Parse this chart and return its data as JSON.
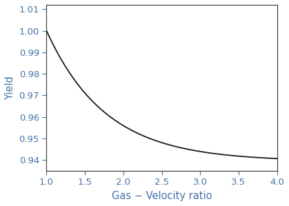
{
  "xlabel": "Gas − Velocity ratio",
  "ylabel": "Yield",
  "xlim": [
    1.0,
    4.0
  ],
  "ylim": [
    0.935,
    1.012
  ],
  "xticks": [
    1.0,
    1.5,
    2.0,
    2.5,
    3.0,
    3.5,
    4.0
  ],
  "yticks": [
    0.94,
    0.95,
    0.96,
    0.97,
    0.98,
    0.99,
    1.0,
    1.01
  ],
  "line_color": "#1a1a1a",
  "label_color": "#4472a8",
  "tick_color": "#4472a8",
  "spine_color": "#333333",
  "background_color": "#ffffff",
  "curve_a": 0.9395,
  "curve_b": 0.0605,
  "curve_k": 1.3,
  "curve_x0": 1.0,
  "xlabel_fontsize": 10.5,
  "ylabel_fontsize": 10.5,
  "tick_fontsize": 9.5
}
